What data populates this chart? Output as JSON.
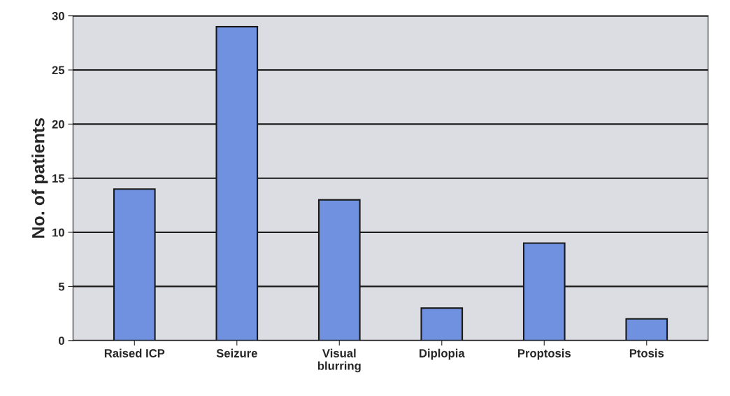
{
  "chart_data": {
    "type": "bar",
    "ylabel": "No. of patients",
    "categories": [
      "Raised ICP",
      "Seizure",
      "Visual\nblurring",
      "Diplopia",
      "Proptosis",
      "Ptosis"
    ],
    "values": [
      14,
      29,
      13,
      3,
      9,
      2
    ],
    "color": "#7090e0",
    "ylim": [
      0,
      30
    ],
    "yticks": [
      0,
      5,
      10,
      15,
      20,
      25,
      30
    ],
    "grid": "y"
  }
}
